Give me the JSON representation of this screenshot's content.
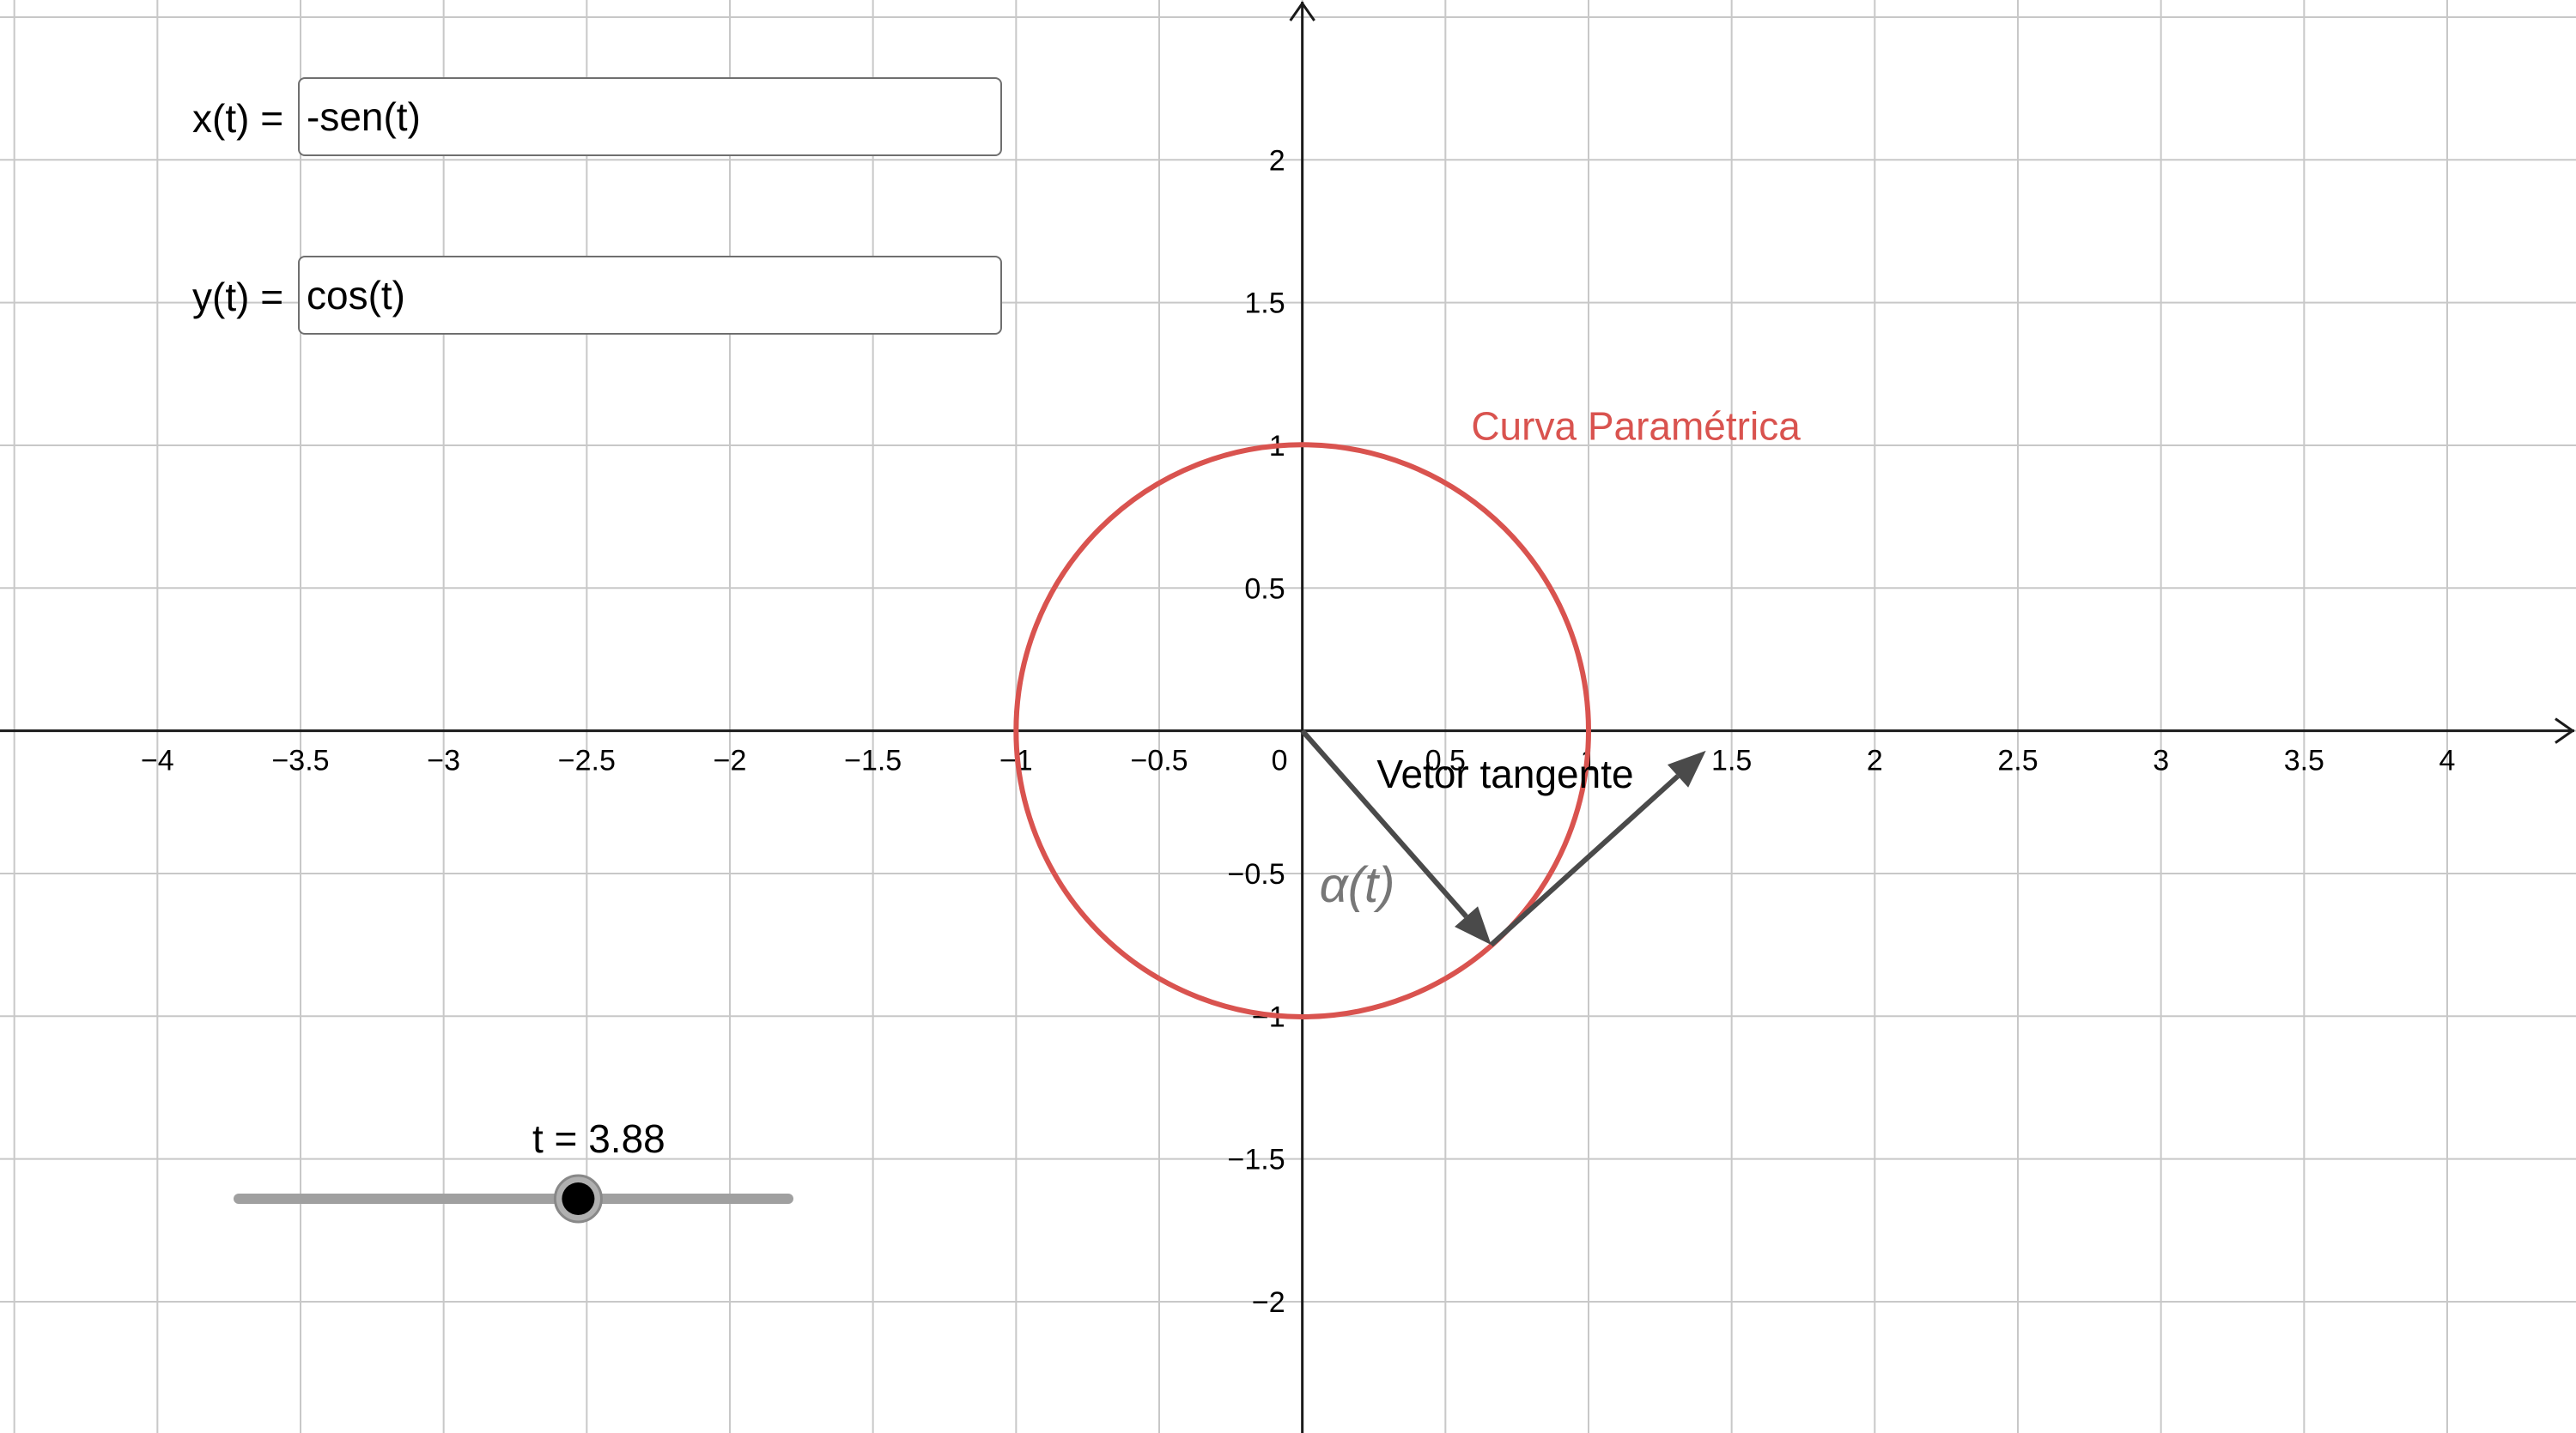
{
  "inputs": {
    "x": {
      "label": "x(t) =",
      "value": "-sen(t)"
    },
    "y": {
      "label": "y(t) =",
      "value": "cos(t)"
    }
  },
  "slider": {
    "label": "t = 3.88",
    "min": 0,
    "max": 6.28,
    "value": 3.88
  },
  "graph": {
    "x_range": [
      -4.55,
      4.45
    ],
    "y_range": [
      -2.46,
      2.56
    ],
    "grid": true,
    "x_ticks": [
      "-4",
      "-3.5",
      "-3",
      "-2.5",
      "-2",
      "-1.5",
      "-1",
      "-0.5",
      "0",
      "0.5",
      "1",
      "1.5",
      "2",
      "2.5",
      "3",
      "3.5",
      "4"
    ],
    "y_ticks": [
      "2",
      "1.5",
      "1",
      "0.5",
      "-0.5",
      "-1",
      "-1.5",
      "-2"
    ]
  },
  "curve": {
    "label": "Curva Paramétrica",
    "color": "#d9534f",
    "radius": 1
  },
  "position_vector": {
    "label": "α(t)",
    "end": [
      0.66,
      -0.75
    ]
  },
  "tangent_vector": {
    "label": "Vetor tangente",
    "start": [
      0.66,
      -0.75
    ],
    "end": [
      1.41,
      -0.07
    ]
  },
  "colors": {
    "grid": "#c8c8c8",
    "axis": "#1a1a1a",
    "vector": "#4a4a4a",
    "slider_track": "#a0a0a0"
  }
}
